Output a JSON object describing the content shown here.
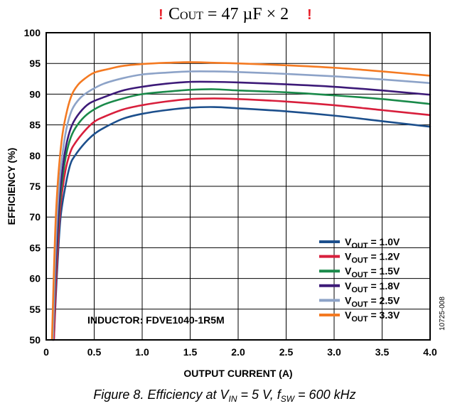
{
  "header": {
    "warning_mark": "!",
    "cout_c": "C",
    "cout_sub": "OUT",
    "cout_value": " = 47 µF × 2"
  },
  "caption": {
    "lead": "Figure 8. Efficiency at V",
    "vin_sub": "IN",
    "mid": " = 5 V, f",
    "fsw_sub": "SW",
    "tail": " = 600 kHz"
  },
  "figure_id": "10725-008",
  "colors": {
    "v1_0": "#1c4f8c",
    "v1_2": "#d81f3c",
    "v1_5": "#1a8a4a",
    "v1_8": "#3d1a78",
    "v2_5": "#8da3c8",
    "v3_3": "#f47a22",
    "grid": "#000000"
  },
  "chart_data": {
    "type": "line",
    "title": "",
    "xlabel": "OUTPUT CURRENT (A)",
    "ylabel": "EFFICIENCY (%)",
    "xlim": [
      0,
      4.0
    ],
    "ylim": [
      50,
      100
    ],
    "xticks": [
      "0",
      "0.5",
      "1.0",
      "1.5",
      "2.0",
      "2.5",
      "3.0",
      "3.5",
      "4.0"
    ],
    "yticks": [
      "50",
      "55",
      "60",
      "65",
      "70",
      "75",
      "80",
      "85",
      "90",
      "95",
      "100"
    ],
    "grid": true,
    "legend_position": "bottom-right",
    "annotation": "INDUCTOR: FDVE1040-1R5M",
    "series": [
      {
        "name_pre": "V",
        "name_sub": "OUT",
        "name_post": " = 1.0V",
        "color_key": "v1_0",
        "x": [
          0.08,
          0.1,
          0.12,
          0.15,
          0.2,
          0.25,
          0.3,
          0.4,
          0.5,
          0.6,
          0.8,
          1.0,
          1.25,
          1.5,
          1.75,
          2.0,
          2.5,
          3.0,
          3.5,
          4.0
        ],
        "y": [
          50,
          57,
          63,
          70,
          75,
          78.5,
          80,
          82,
          83.5,
          84.5,
          86,
          86.8,
          87.4,
          87.8,
          87.9,
          87.7,
          87.2,
          86.5,
          85.6,
          84.7
        ]
      },
      {
        "name_pre": "V",
        "name_sub": "OUT",
        "name_post": " = 1.2V",
        "color_key": "v1_2",
        "x": [
          0.08,
          0.1,
          0.12,
          0.15,
          0.2,
          0.25,
          0.3,
          0.4,
          0.5,
          0.6,
          0.8,
          1.0,
          1.25,
          1.5,
          1.75,
          2.0,
          2.5,
          3.0,
          3.5,
          4.0
        ],
        "y": [
          50,
          58.5,
          65,
          72,
          77.5,
          80.5,
          82,
          84,
          85.5,
          86.3,
          87.5,
          88.2,
          88.8,
          89.2,
          89.3,
          89.2,
          88.8,
          88.2,
          87.4,
          86.6
        ]
      },
      {
        "name_pre": "V",
        "name_sub": "OUT",
        "name_post": " = 1.5V",
        "color_key": "v1_5",
        "x": [
          0.07,
          0.09,
          0.11,
          0.14,
          0.18,
          0.22,
          0.27,
          0.35,
          0.45,
          0.6,
          0.8,
          1.0,
          1.25,
          1.5,
          1.75,
          2.0,
          2.5,
          3.0,
          3.5,
          4.0
        ],
        "y": [
          50,
          58,
          65,
          72,
          77.5,
          81,
          83.5,
          85.5,
          87,
          88.3,
          89.3,
          90,
          90.4,
          90.7,
          90.8,
          90.6,
          90.3,
          89.8,
          89.2,
          88.4
        ]
      },
      {
        "name_pre": "V",
        "name_sub": "OUT",
        "name_post": " = 1.8V",
        "color_key": "v1_8",
        "x": [
          0.07,
          0.09,
          0.11,
          0.14,
          0.18,
          0.22,
          0.27,
          0.35,
          0.45,
          0.6,
          0.8,
          1.0,
          1.25,
          1.5,
          1.75,
          2.0,
          2.5,
          3.0,
          3.5,
          4.0
        ],
        "y": [
          50,
          59,
          66,
          73.5,
          79,
          82.5,
          85,
          87,
          88.5,
          89.5,
          90.6,
          91.2,
          91.7,
          92,
          92,
          91.9,
          91.6,
          91.2,
          90.6,
          89.9
        ]
      },
      {
        "name_pre": "V",
        "name_sub": "OUT",
        "name_post": " = 2.5V",
        "color_key": "v2_5",
        "x": [
          0.07,
          0.09,
          0.11,
          0.14,
          0.18,
          0.22,
          0.27,
          0.35,
          0.45,
          0.6,
          0.8,
          1.0,
          1.25,
          1.5,
          1.75,
          2.0,
          2.5,
          3.0,
          3.5,
          4.0
        ],
        "y": [
          50,
          61,
          69,
          76,
          81.5,
          85,
          87.5,
          89.3,
          90.5,
          91.7,
          92.6,
          93.2,
          93.5,
          93.7,
          93.7,
          93.6,
          93.3,
          92.9,
          92.4,
          91.8
        ]
      },
      {
        "name_pre": "V",
        "name_sub": "OUT",
        "name_post": " = 3.3V",
        "color_key": "v3_3",
        "x": [
          0.06,
          0.08,
          0.1,
          0.13,
          0.17,
          0.22,
          0.27,
          0.33,
          0.4,
          0.5,
          0.65,
          0.8,
          1.0,
          1.25,
          1.5,
          1.75,
          2.0,
          2.5,
          3.0,
          3.5,
          4.0
        ],
        "y": [
          50,
          61,
          70,
          77.5,
          83.5,
          87.5,
          90,
          91.5,
          92.5,
          93.5,
          94.1,
          94.6,
          94.9,
          95.1,
          95.2,
          95.1,
          95,
          94.7,
          94.3,
          93.7,
          93
        ]
      }
    ]
  }
}
